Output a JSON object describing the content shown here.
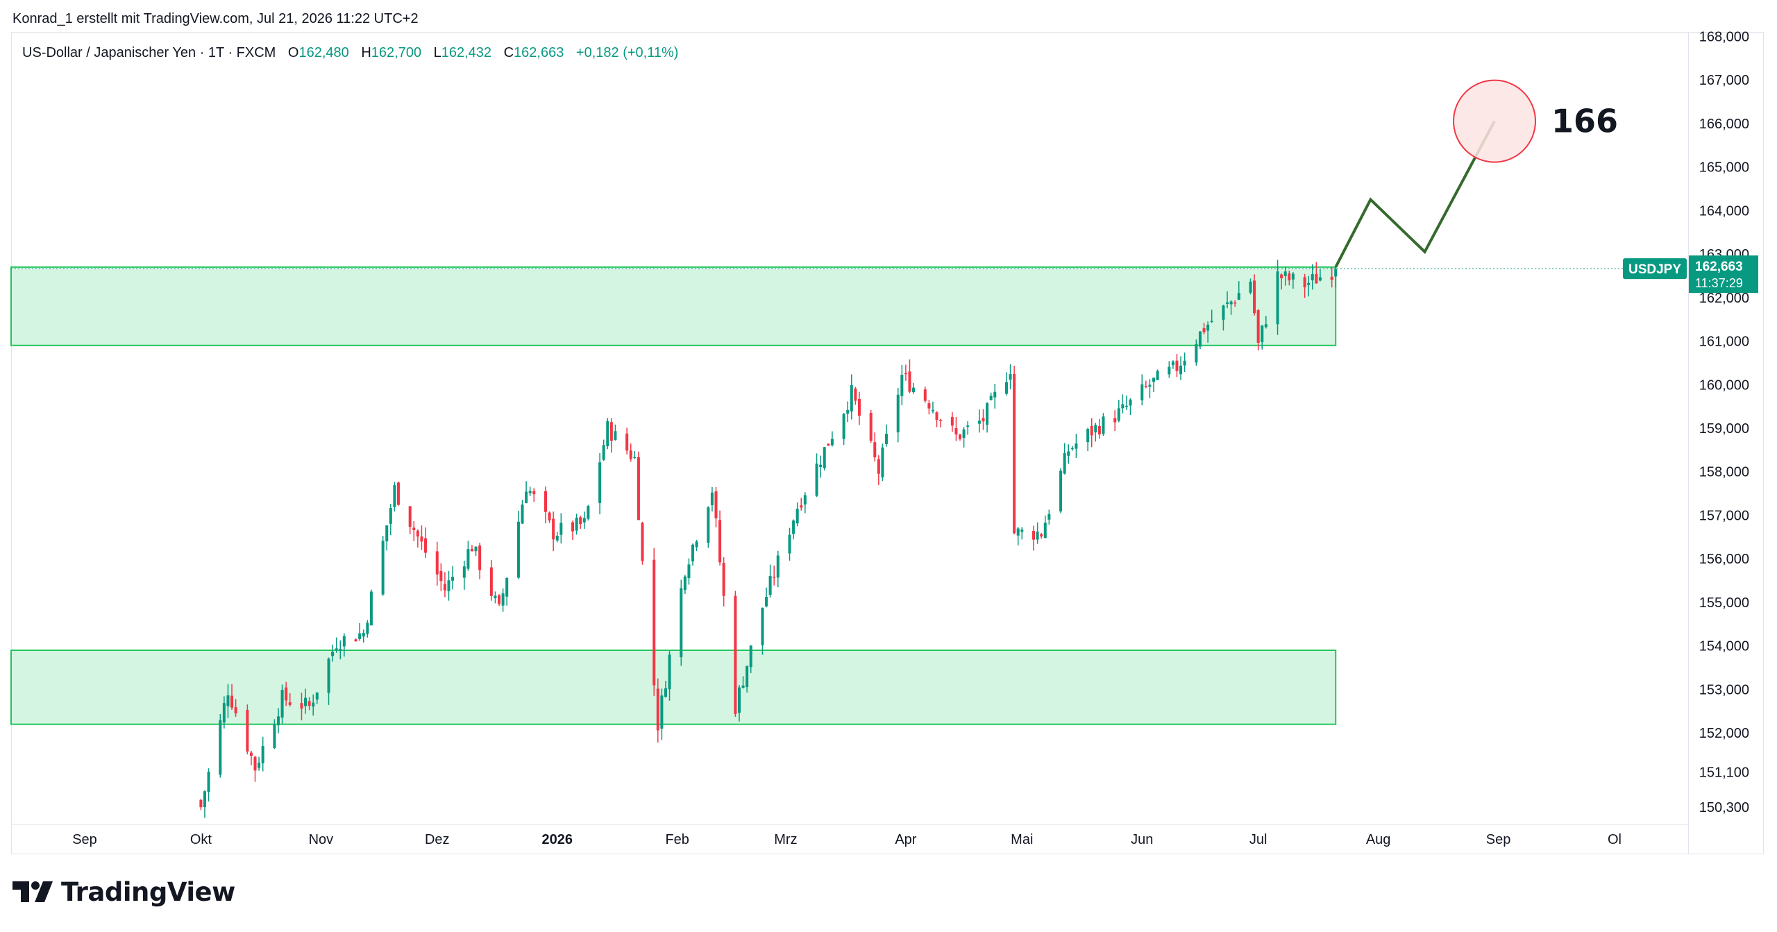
{
  "header": {
    "credit": "Konrad_1 erstellt mit TradingView.com, Jul 21, 2026 11:22 UTC+2",
    "symbol_line": "US-Dollar / Japanischer Yen · 1T · FXCM",
    "o_label": "O",
    "o_value": "162,480",
    "h_label": "H",
    "h_value": "162,700",
    "l_label": "L",
    "l_value": "162,432",
    "c_label": "C",
    "c_value": "162,663",
    "change": "+0,182 (+0,11%)"
  },
  "price_tag": {
    "symbol": "USDJPY",
    "price": "162,663",
    "countdown": "11:37:29"
  },
  "annotation": {
    "target_label": "166"
  },
  "footer": {
    "brand": "TradingView"
  },
  "colors": {
    "up": "#089981",
    "down": "#f23645",
    "zone_fill": "#d4f5e1",
    "zone_stroke": "#22c55e",
    "projection": "#356a2d",
    "circle_stroke": "#f23645",
    "circle_fill": "#fde4e4",
    "tag_bg": "#089981"
  },
  "chart_data": {
    "type": "candlestick",
    "title": "US-Dollar / Japanischer Yen · 1T · FXCM",
    "ylim": [
      149900,
      168100
    ],
    "y_ticks": [
      150300,
      151100,
      152000,
      153000,
      154000,
      155000,
      156000,
      157000,
      158000,
      159000,
      160000,
      161000,
      162000,
      163000,
      164000,
      165000,
      166000,
      167000,
      168000
    ],
    "y_tick_labels": [
      "150,300",
      "151,100",
      "152,000",
      "153,000",
      "154,000",
      "155,000",
      "156,000",
      "157,000",
      "158,000",
      "159,000",
      "160,000",
      "161,000",
      "162,000",
      "163,000",
      "164,000",
      "165,000",
      "166,000",
      "167,000",
      "168,000"
    ],
    "x_labels": [
      {
        "label": "Sep",
        "date": "2025-09-01",
        "bold": false
      },
      {
        "label": "Okt",
        "date": "2025-10-01",
        "bold": false
      },
      {
        "label": "Nov",
        "date": "2025-11-01",
        "bold": false
      },
      {
        "label": "Dez",
        "date": "2025-12-01",
        "bold": false
      },
      {
        "label": "2026",
        "date": "2026-01-01",
        "bold": true
      },
      {
        "label": "Feb",
        "date": "2026-02-01",
        "bold": false
      },
      {
        "label": "Mrz",
        "date": "2026-03-01",
        "bold": false
      },
      {
        "label": "Apr",
        "date": "2026-04-01",
        "bold": false
      },
      {
        "label": "Mai",
        "date": "2026-05-01",
        "bold": false
      },
      {
        "label": "Jun",
        "date": "2026-06-01",
        "bold": false
      },
      {
        "label": "Jul",
        "date": "2026-07-01",
        "bold": false
      },
      {
        "label": "Aug",
        "date": "2026-08-01",
        "bold": false
      },
      {
        "label": "Sep",
        "date": "2026-09-01",
        "bold": false
      },
      {
        "label": "Ol",
        "date": "2026-10-01",
        "bold": false
      }
    ],
    "x_range": [
      "2025-08-13",
      "2026-10-20"
    ],
    "zones": [
      {
        "from": "2025-08-13",
        "to": "2026-07-21",
        "low": 160900,
        "high": 162700
      },
      {
        "from": "2025-08-13",
        "to": "2026-07-21",
        "low": 152200,
        "high": 153900
      }
    ],
    "projection": {
      "dates": [
        "2026-07-21",
        "2026-07-30",
        "2026-08-13",
        "2026-08-31"
      ],
      "values": [
        162700,
        164250,
        163050,
        166050
      ]
    },
    "target_circle": {
      "date": "2026-08-31",
      "value": 166050
    },
    "last_price": 162663,
    "anchors": [
      {
        "date": "2025-10-01",
        "price": 150300
      },
      {
        "date": "2025-10-08",
        "price": 153000
      },
      {
        "date": "2025-10-15",
        "price": 151200
      },
      {
        "date": "2025-10-22",
        "price": 152800
      },
      {
        "date": "2025-10-29",
        "price": 152600
      },
      {
        "date": "2025-11-05",
        "price": 154100
      },
      {
        "date": "2025-11-12",
        "price": 154300
      },
      {
        "date": "2025-11-20",
        "price": 157600
      },
      {
        "date": "2025-11-26",
        "price": 156500
      },
      {
        "date": "2025-12-03",
        "price": 155300
      },
      {
        "date": "2025-12-10",
        "price": 156300
      },
      {
        "date": "2025-12-17",
        "price": 154800
      },
      {
        "date": "2025-12-24",
        "price": 157700
      },
      {
        "date": "2025-12-31",
        "price": 156600
      },
      {
        "date": "2026-01-08",
        "price": 156800
      },
      {
        "date": "2026-01-14",
        "price": 159000
      },
      {
        "date": "2026-01-21",
        "price": 158300
      },
      {
        "date": "2026-01-23",
        "price": 155900
      },
      {
        "date": "2026-01-27",
        "price": 152200
      },
      {
        "date": "2026-02-03",
        "price": 155800
      },
      {
        "date": "2026-02-10",
        "price": 157600
      },
      {
        "date": "2026-02-16",
        "price": 152600
      },
      {
        "date": "2026-02-23",
        "price": 154900
      },
      {
        "date": "2026-03-04",
        "price": 157200
      },
      {
        "date": "2026-03-11",
        "price": 158500
      },
      {
        "date": "2026-03-18",
        "price": 159800
      },
      {
        "date": "2026-03-25",
        "price": 158000
      },
      {
        "date": "2026-03-31",
        "price": 160200
      },
      {
        "date": "2026-04-07",
        "price": 159600
      },
      {
        "date": "2026-04-14",
        "price": 158800
      },
      {
        "date": "2026-04-21",
        "price": 159200
      },
      {
        "date": "2026-04-28",
        "price": 160400
      },
      {
        "date": "2026-04-29",
        "price": 156600
      },
      {
        "date": "2026-05-06",
        "price": 156600
      },
      {
        "date": "2026-05-13",
        "price": 158500
      },
      {
        "date": "2026-05-20",
        "price": 159000
      },
      {
        "date": "2026-05-27",
        "price": 159400
      },
      {
        "date": "2026-06-03",
        "price": 160000
      },
      {
        "date": "2026-06-10",
        "price": 160400
      },
      {
        "date": "2026-06-17",
        "price": 161300
      },
      {
        "date": "2026-06-24",
        "price": 161900
      },
      {
        "date": "2026-06-29",
        "price": 162400
      },
      {
        "date": "2026-07-01",
        "price": 160900
      },
      {
        "date": "2026-07-06",
        "price": 162500
      },
      {
        "date": "2026-07-13",
        "price": 162300
      },
      {
        "date": "2026-07-21",
        "price": 162663
      }
    ]
  }
}
